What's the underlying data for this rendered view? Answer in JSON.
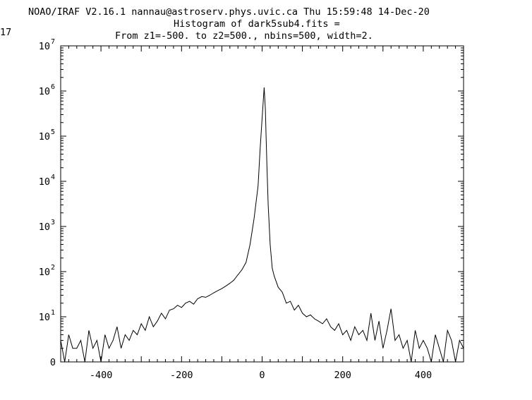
{
  "header": {
    "line1": "NOAO/IRAF V2.16.1 nannau@astroserv.phys.uvic.ca Thu 15:59:48 14-Dec-20",
    "line1_wrap": "17",
    "title": "Histogram of dark5sub4.fits =",
    "subtitle": "From z1=-500. to z2=500., nbins=500, width=2."
  },
  "chart_data": {
    "type": "line",
    "title": "Histogram of dark5sub4.fits =",
    "subtitle": "From z1=-500. to z2=500., nbins=500, width=2.",
    "xlabel": "",
    "ylabel": "",
    "xlim": [
      -500,
      500
    ],
    "ylog": true,
    "ylim_log": [
      0,
      7
    ],
    "grid": false,
    "x_ticks": [
      -400,
      -200,
      0,
      200,
      400
    ],
    "y_ticks": [
      {
        "base": "0",
        "exp": ""
      },
      {
        "base": "10",
        "exp": "1"
      },
      {
        "base": "10",
        "exp": "2"
      },
      {
        "base": "10",
        "exp": "3"
      },
      {
        "base": "10",
        "exp": "4"
      },
      {
        "base": "10",
        "exp": "5"
      },
      {
        "base": "10",
        "exp": "6"
      },
      {
        "base": "10",
        "exp": "7"
      }
    ],
    "series": [
      {
        "name": "",
        "x": [
          -500,
          -490,
          -480,
          -470,
          -460,
          -450,
          -440,
          -430,
          -420,
          -410,
          -400,
          -390,
          -380,
          -370,
          -360,
          -350,
          -340,
          -330,
          -320,
          -310,
          -300,
          -290,
          -280,
          -270,
          -260,
          -250,
          -240,
          -230,
          -220,
          -210,
          -200,
          -190,
          -180,
          -170,
          -160,
          -150,
          -140,
          -130,
          -120,
          -110,
          -100,
          -90,
          -80,
          -70,
          -60,
          -50,
          -40,
          -30,
          -20,
          -10,
          -5,
          0,
          5,
          8,
          10,
          12,
          15,
          20,
          25,
          30,
          40,
          50,
          60,
          70,
          80,
          90,
          100,
          110,
          120,
          130,
          140,
          150,
          160,
          170,
          180,
          190,
          200,
          210,
          220,
          230,
          240,
          250,
          260,
          270,
          280,
          290,
          300,
          310,
          320,
          330,
          340,
          350,
          360,
          370,
          380,
          390,
          400,
          410,
          420,
          430,
          440,
          450,
          460,
          470,
          480,
          490,
          500
        ],
        "values": [
          3,
          1,
          4,
          2,
          2,
          3,
          1,
          5,
          2,
          3,
          1,
          4,
          2,
          3,
          6,
          2,
          4,
          3,
          5,
          4,
          7,
          5,
          10,
          6,
          8,
          12,
          9,
          14,
          15,
          18,
          16,
          20,
          22,
          19,
          25,
          28,
          27,
          30,
          34,
          38,
          42,
          48,
          55,
          65,
          85,
          110,
          160,
          400,
          1500,
          8000,
          50000,
          250000,
          1200000,
          400000,
          90000,
          20000,
          3000,
          400,
          120,
          80,
          45,
          35,
          20,
          22,
          14,
          18,
          12,
          10,
          11,
          9,
          8,
          7,
          9,
          6,
          5,
          7,
          4,
          5,
          3,
          6,
          4,
          5,
          3,
          12,
          3,
          8,
          2,
          5,
          15,
          3,
          4,
          2,
          3,
          1,
          5,
          2,
          3,
          2,
          1,
          4,
          2,
          1,
          5,
          3,
          1,
          3,
          2
        ]
      }
    ]
  }
}
